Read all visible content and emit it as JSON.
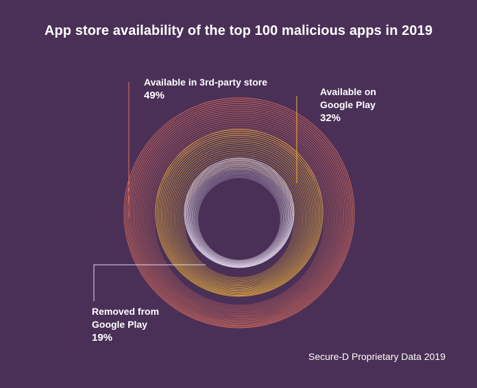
{
  "chart_data": {
    "type": "pie",
    "title": "App store availability of the top 100 malicious apps in 2019",
    "series": [
      {
        "name": "Available in 3rd-party store",
        "value_label": "49%",
        "value": 49,
        "color": "#e8735c"
      },
      {
        "name": "Available on Google Play",
        "value_label": "32%",
        "value": 32,
        "color": "#f0b43c"
      },
      {
        "name": "Removed from Google Play",
        "value_label": "19%",
        "value": 19,
        "color": "#e6dcef"
      }
    ],
    "labels": {
      "third_party": {
        "line1": "Available in 3rd-party store",
        "pct": "49%"
      },
      "google_play": {
        "line1": "Available on",
        "line2": "Google Play",
        "pct": "32%"
      },
      "removed": {
        "line1": "Removed from",
        "line2": "Google Play",
        "pct": "19%"
      }
    }
  },
  "footer": "Secure-D Proprietary Data 2019"
}
